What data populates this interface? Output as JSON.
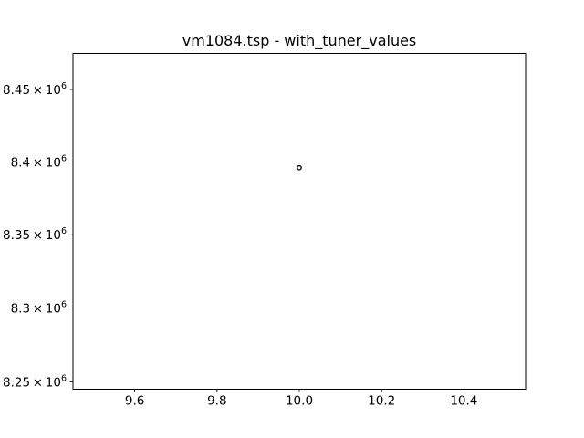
{
  "chart_data": {
    "type": "scatter",
    "title": "vm1084.tsp - with_tuner_values",
    "xlabel": "",
    "ylabel": "",
    "xlim": [
      9.45,
      10.55
    ],
    "ylim": [
      8245000,
      8475000
    ],
    "y_scale": "log",
    "grid": false,
    "x_ticks": [
      9.6,
      9.8,
      10.0,
      10.2,
      10.4
    ],
    "x_tick_labels": [
      "9.6",
      "9.8",
      "10.0",
      "10.2",
      "10.4"
    ],
    "y_ticks": [
      8250000,
      8300000,
      8350000,
      8400000,
      8450000
    ],
    "y_tick_labels": [
      {
        "mantissa": "8.25",
        "base": "10",
        "exp": "6"
      },
      {
        "mantissa": "8.3",
        "base": "10",
        "exp": "6"
      },
      {
        "mantissa": "8.35",
        "base": "10",
        "exp": "6"
      },
      {
        "mantissa": "8.4",
        "base": "10",
        "exp": "6"
      },
      {
        "mantissa": "8.45",
        "base": "10",
        "exp": "6"
      }
    ],
    "series": [
      {
        "points": [
          {
            "x": 10.0,
            "y": 8396000
          }
        ],
        "marker": "circle-open",
        "color": "#000000"
      }
    ]
  }
}
